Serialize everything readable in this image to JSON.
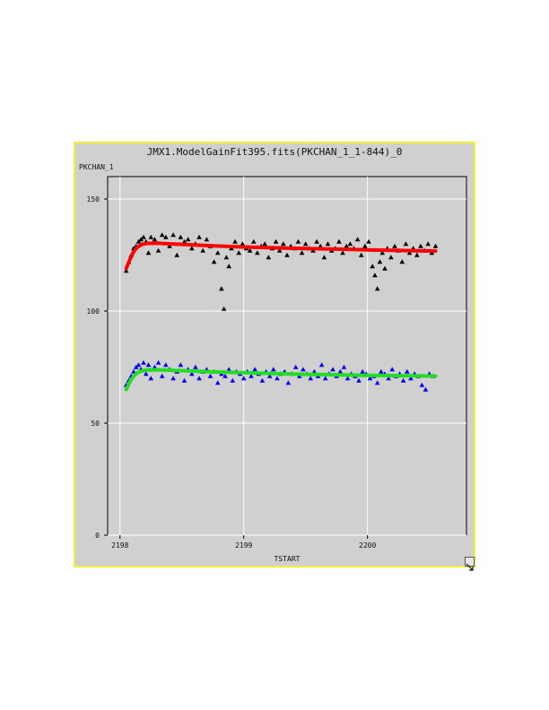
{
  "colors": {
    "frame_border": "#f2ee3a",
    "background": "#d0d0d0",
    "upper_points": "#000000",
    "upper_fit": "#ff0000",
    "lower_points": "#0000ee",
    "lower_fit": "#22dd22",
    "grid": "#ffffff"
  },
  "chart_data": {
    "type": "scatter",
    "title": "JMX1.ModelGainFit395.fits(PKCHAN_1_1-844)_0",
    "xlabel": "TSTART",
    "ylabel": "PKCHAN_1",
    "xlim": [
      2197.9,
      2200.8
    ],
    "ylim": [
      0,
      160
    ],
    "xticks": [
      2198,
      2199,
      2200
    ],
    "yticks": [
      0,
      50,
      100,
      150
    ],
    "xtick_labels": [
      "2198",
      "2199",
      "2200"
    ],
    "ytick_labels": [
      "0",
      "50",
      "100",
      "150"
    ],
    "grid": true,
    "legend": "none",
    "series": [
      {
        "kind": "points",
        "marker": "triangle",
        "color": "#000000",
        "x": [
          2198.05,
          2198.07,
          2198.09,
          2198.11,
          2198.13,
          2198.15,
          2198.17,
          2198.19,
          2198.21,
          2198.23,
          2198.25,
          2198.28,
          2198.31,
          2198.34,
          2198.37,
          2198.4,
          2198.43,
          2198.46,
          2198.49,
          2198.52,
          2198.55,
          2198.58,
          2198.61,
          2198.64,
          2198.67,
          2198.7,
          2198.73,
          2198.76,
          2198.79,
          2198.82,
          2198.84,
          2198.86,
          2198.88,
          2198.9,
          2198.93,
          2198.96,
          2198.99,
          2199.02,
          2199.05,
          2199.08,
          2199.11,
          2199.14,
          2199.17,
          2199.2,
          2199.23,
          2199.26,
          2199.29,
          2199.32,
          2199.35,
          2199.38,
          2199.41,
          2199.44,
          2199.47,
          2199.5,
          2199.53,
          2199.56,
          2199.59,
          2199.62,
          2199.65,
          2199.68,
          2199.71,
          2199.74,
          2199.77,
          2199.8,
          2199.83,
          2199.86,
          2199.89,
          2199.92,
          2199.95,
          2199.98,
          2200.01,
          2200.04,
          2200.06,
          2200.08,
          2200.1,
          2200.12,
          2200.14,
          2200.16,
          2200.19,
          2200.22,
          2200.25,
          2200.28,
          2200.31,
          2200.34,
          2200.37,
          2200.4,
          2200.43,
          2200.46,
          2200.49,
          2200.52,
          2200.55
        ],
        "y": [
          118,
          122,
          125,
          128,
          129,
          131,
          132,
          133,
          131,
          126,
          133,
          132,
          127,
          134,
          133,
          129,
          134,
          125,
          133,
          131,
          132,
          128,
          130,
          133,
          127,
          132,
          129,
          122,
          126,
          110,
          101,
          124,
          120,
          128,
          131,
          126,
          130,
          128,
          127,
          131,
          126,
          129,
          130,
          124,
          128,
          131,
          127,
          130,
          125,
          129,
          128,
          131,
          126,
          130,
          128,
          127,
          131,
          129,
          124,
          130,
          127,
          128,
          131,
          126,
          129,
          130,
          128,
          132,
          125,
          129,
          131,
          120,
          116,
          110,
          122,
          126,
          119,
          128,
          124,
          129,
          127,
          122,
          130,
          126,
          128,
          125,
          129,
          127,
          130,
          126,
          129
        ]
      },
      {
        "kind": "line",
        "color": "#ff0000",
        "x": [
          2198.05,
          2198.08,
          2198.11,
          2198.14,
          2198.18,
          2198.22,
          2198.3,
          2198.4,
          2198.6,
          2198.8,
          2199.0,
          2199.2,
          2199.4,
          2199.6,
          2199.8,
          2200.0,
          2200.2,
          2200.4,
          2200.55
        ],
        "y": [
          119,
          123,
          126.5,
          128.5,
          129.8,
          130.2,
          130.3,
          130,
          129.5,
          129,
          128.6,
          128.3,
          128,
          127.8,
          127.6,
          127.3,
          127.1,
          126.9,
          126.8
        ]
      },
      {
        "kind": "points",
        "marker": "triangle",
        "color": "#0000ee",
        "x": [
          2198.05,
          2198.07,
          2198.09,
          2198.11,
          2198.13,
          2198.15,
          2198.17,
          2198.19,
          2198.21,
          2198.23,
          2198.25,
          2198.28,
          2198.31,
          2198.34,
          2198.37,
          2198.4,
          2198.43,
          2198.46,
          2198.49,
          2198.52,
          2198.55,
          2198.58,
          2198.61,
          2198.64,
          2198.67,
          2198.7,
          2198.73,
          2198.76,
          2198.79,
          2198.82,
          2198.85,
          2198.88,
          2198.91,
          2198.94,
          2198.97,
          2199.0,
          2199.03,
          2199.06,
          2199.09,
          2199.12,
          2199.15,
          2199.18,
          2199.21,
          2199.24,
          2199.27,
          2199.3,
          2199.33,
          2199.36,
          2199.39,
          2199.42,
          2199.45,
          2199.48,
          2199.51,
          2199.54,
          2199.57,
          2199.6,
          2199.63,
          2199.66,
          2199.69,
          2199.72,
          2199.75,
          2199.78,
          2199.81,
          2199.84,
          2199.87,
          2199.9,
          2199.93,
          2199.96,
          2199.99,
          2200.02,
          2200.05,
          2200.08,
          2200.11,
          2200.14,
          2200.17,
          2200.2,
          2200.23,
          2200.26,
          2200.29,
          2200.32,
          2200.35,
          2200.38,
          2200.41,
          2200.44,
          2200.47,
          2200.5,
          2200.53
        ],
        "y": [
          67,
          69,
          71,
          73,
          75,
          76,
          74,
          77,
          72,
          76,
          70,
          75,
          77,
          71,
          76,
          74,
          70,
          73,
          76,
          69,
          74,
          72,
          75,
          70,
          73,
          74,
          71,
          73,
          68,
          72,
          71,
          74,
          69,
          73,
          72,
          70,
          73,
          71,
          74,
          72,
          69,
          73,
          71,
          74,
          70,
          72,
          73,
          68,
          72,
          75,
          71,
          74,
          72,
          70,
          73,
          71,
          76,
          70,
          72,
          74,
          71,
          73,
          75,
          70,
          72,
          71,
          69,
          73,
          72,
          70,
          71,
          68,
          73,
          72,
          70,
          74,
          71,
          72,
          69,
          73,
          70,
          72,
          71,
          67,
          65,
          72,
          71
        ]
      },
      {
        "kind": "line",
        "color": "#22dd22",
        "x": [
          2198.05,
          2198.08,
          2198.11,
          2198.14,
          2198.18,
          2198.22,
          2198.3,
          2198.4,
          2198.6,
          2198.8,
          2199.0,
          2199.2,
          2199.4,
          2199.6,
          2199.8,
          2200.0,
          2200.2,
          2200.4,
          2200.55
        ],
        "y": [
          65,
          68.5,
          71,
          72.5,
          73.3,
          73.7,
          73.8,
          73.6,
          73.2,
          72.8,
          72.5,
          72.2,
          71.9,
          71.7,
          71.5,
          71.3,
          71.2,
          71.1,
          71.0
        ]
      }
    ]
  }
}
